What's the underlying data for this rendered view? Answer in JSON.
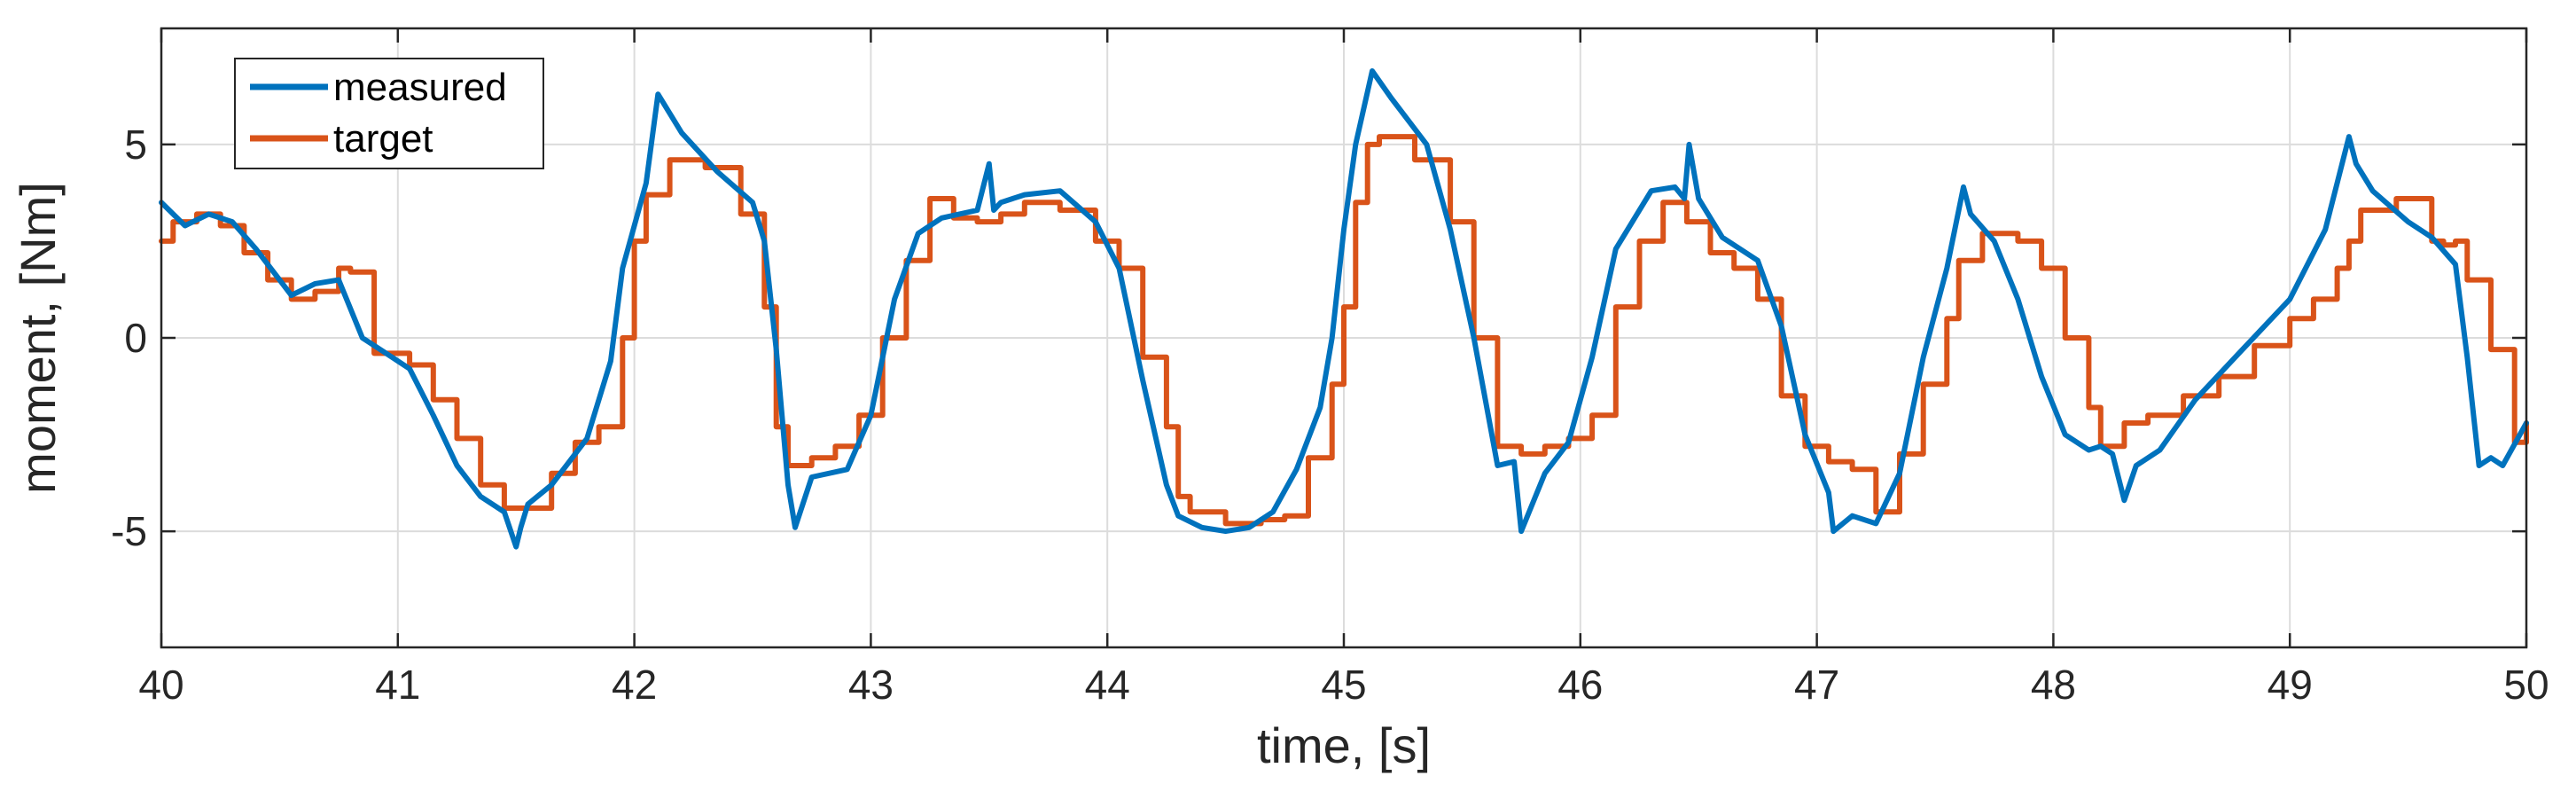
{
  "chart_data": {
    "type": "line",
    "xlabel": "time, [s]",
    "ylabel": "moment, [Nm]",
    "xlim": [
      40,
      50
    ],
    "ylim": [
      -8,
      8
    ],
    "xticks": [
      40,
      41,
      42,
      43,
      44,
      45,
      46,
      47,
      48,
      49,
      50
    ],
    "xtick_labels": [
      "40",
      "41",
      "42",
      "43",
      "44",
      "45",
      "46",
      "47",
      "48",
      "49",
      "50"
    ],
    "yticks": [
      -5,
      0,
      5
    ],
    "ytick_labels": [
      "-5",
      "0",
      "5"
    ],
    "grid": true,
    "legend_position": "top-left",
    "series": [
      {
        "name": "measured",
        "color": "#0072BD",
        "step": false,
        "x": [
          40.0,
          40.1,
          40.2,
          40.3,
          40.4,
          40.55,
          40.65,
          40.75,
          40.85,
          40.95,
          41.05,
          41.15,
          41.25,
          41.35,
          41.45,
          41.5,
          41.52,
          41.55,
          41.65,
          41.8,
          41.9,
          41.95,
          42.05,
          42.1,
          42.2,
          42.35,
          42.5,
          42.55,
          42.6,
          42.65,
          42.68,
          42.75,
          42.9,
          43.0,
          43.1,
          43.2,
          43.3,
          43.45,
          43.5,
          43.52,
          43.55,
          43.65,
          43.8,
          43.95,
          44.05,
          44.15,
          44.25,
          44.3,
          44.4,
          44.5,
          44.6,
          44.7,
          44.8,
          44.9,
          44.95,
          45.0,
          45.05,
          45.12,
          45.2,
          45.35,
          45.45,
          45.55,
          45.65,
          45.72,
          45.75,
          45.85,
          45.95,
          46.05,
          46.15,
          46.3,
          46.4,
          46.44,
          46.46,
          46.5,
          46.6,
          46.75,
          46.85,
          46.95,
          47.05,
          47.07,
          47.15,
          47.25,
          47.35,
          47.45,
          47.55,
          47.62,
          47.65,
          47.75,
          47.85,
          47.95,
          48.05,
          48.15,
          48.2,
          48.25,
          48.3,
          48.35,
          48.45,
          48.6,
          48.8,
          49.0,
          49.15,
          49.25,
          49.28,
          49.35,
          49.5,
          49.6,
          49.7,
          49.75,
          49.8,
          49.85,
          49.9,
          50.0
        ],
        "y": [
          3.5,
          2.9,
          3.2,
          3.0,
          2.3,
          1.1,
          1.4,
          1.5,
          0.0,
          -0.4,
          -0.8,
          -2.0,
          -3.3,
          -4.1,
          -4.5,
          -5.4,
          -4.9,
          -4.3,
          -3.8,
          -2.6,
          -0.6,
          1.8,
          4.0,
          6.3,
          5.3,
          4.3,
          3.5,
          2.5,
          -0.3,
          -3.8,
          -4.9,
          -3.6,
          -3.4,
          -2.0,
          1.0,
          2.7,
          3.1,
          3.3,
          4.5,
          3.3,
          3.5,
          3.7,
          3.8,
          3.0,
          1.8,
          -1.1,
          -3.8,
          -4.6,
          -4.9,
          -5.0,
          -4.9,
          -4.5,
          -3.4,
          -1.8,
          0.0,
          2.8,
          5.0,
          6.9,
          6.2,
          5.0,
          2.8,
          0.0,
          -3.3,
          -3.2,
          -5.0,
          -3.5,
          -2.7,
          -0.5,
          2.3,
          3.8,
          3.9,
          3.6,
          5.0,
          3.6,
          2.6,
          2.0,
          0.3,
          -2.5,
          -4.0,
          -5.0,
          -4.6,
          -4.8,
          -3.5,
          -0.5,
          1.8,
          3.9,
          3.2,
          2.5,
          1.0,
          -1.0,
          -2.5,
          -2.9,
          -2.8,
          -3.0,
          -4.2,
          -3.3,
          -2.9,
          -1.6,
          -0.3,
          1.0,
          2.8,
          5.2,
          4.5,
          3.8,
          3.0,
          2.6,
          1.9,
          -0.5,
          -3.3,
          -3.1,
          -3.3,
          -2.2
        ]
      },
      {
        "name": "target",
        "color": "#D95319",
        "step": true,
        "x": [
          40.0,
          40.05,
          40.15,
          40.25,
          40.35,
          40.45,
          40.55,
          40.65,
          40.75,
          40.8,
          40.9,
          41.05,
          41.15,
          41.25,
          41.35,
          41.45,
          41.55,
          41.65,
          41.75,
          41.85,
          41.95,
          42.0,
          42.05,
          42.15,
          42.3,
          42.45,
          42.55,
          42.6,
          42.65,
          42.75,
          42.85,
          42.95,
          43.05,
          43.15,
          43.25,
          43.35,
          43.45,
          43.55,
          43.65,
          43.8,
          43.95,
          44.05,
          44.15,
          44.25,
          44.3,
          44.35,
          44.5,
          44.65,
          44.75,
          44.85,
          44.95,
          45.0,
          45.05,
          45.1,
          45.15,
          45.3,
          45.45,
          45.55,
          45.65,
          45.75,
          45.85,
          45.95,
          46.05,
          46.15,
          46.25,
          46.35,
          46.45,
          46.55,
          46.65,
          46.75,
          46.85,
          46.95,
          47.05,
          47.15,
          47.25,
          47.35,
          47.45,
          47.55,
          47.6,
          47.7,
          47.85,
          47.95,
          48.05,
          48.15,
          48.2,
          48.3,
          48.4,
          48.55,
          48.7,
          48.85,
          49.0,
          49.1,
          49.2,
          49.25,
          49.3,
          49.45,
          49.6,
          49.65,
          49.7,
          49.75,
          49.85,
          49.95,
          50.0
        ],
        "y": [
          2.5,
          3.0,
          3.2,
          2.9,
          2.2,
          1.5,
          1.0,
          1.2,
          1.8,
          1.7,
          -0.4,
          -0.7,
          -1.6,
          -2.6,
          -3.8,
          -4.4,
          -4.4,
          -3.5,
          -2.7,
          -2.3,
          0.0,
          2.5,
          3.7,
          4.6,
          4.4,
          3.2,
          0.8,
          -2.3,
          -3.3,
          -3.1,
          -2.8,
          -2.0,
          0.0,
          2.0,
          3.6,
          3.1,
          3.0,
          3.2,
          3.5,
          3.3,
          2.5,
          1.8,
          -0.5,
          -2.3,
          -4.1,
          -4.5,
          -4.8,
          -4.7,
          -4.6,
          -3.1,
          -1.2,
          0.8,
          3.5,
          5.0,
          5.2,
          4.6,
          3.0,
          0.0,
          -2.8,
          -3.0,
          -2.8,
          -2.6,
          -2.0,
          0.8,
          2.5,
          3.5,
          3.0,
          2.2,
          1.8,
          1.0,
          -1.5,
          -2.8,
          -3.2,
          -3.4,
          -4.5,
          -3.0,
          -1.2,
          0.5,
          2.0,
          2.7,
          2.5,
          1.8,
          0.0,
          -1.8,
          -2.8,
          -2.2,
          -2.0,
          -1.5,
          -1.0,
          -0.2,
          0.5,
          1.0,
          1.8,
          2.5,
          3.3,
          3.6,
          2.5,
          2.4,
          2.5,
          1.5,
          -0.3,
          -2.7,
          -2.2
        ]
      }
    ]
  }
}
